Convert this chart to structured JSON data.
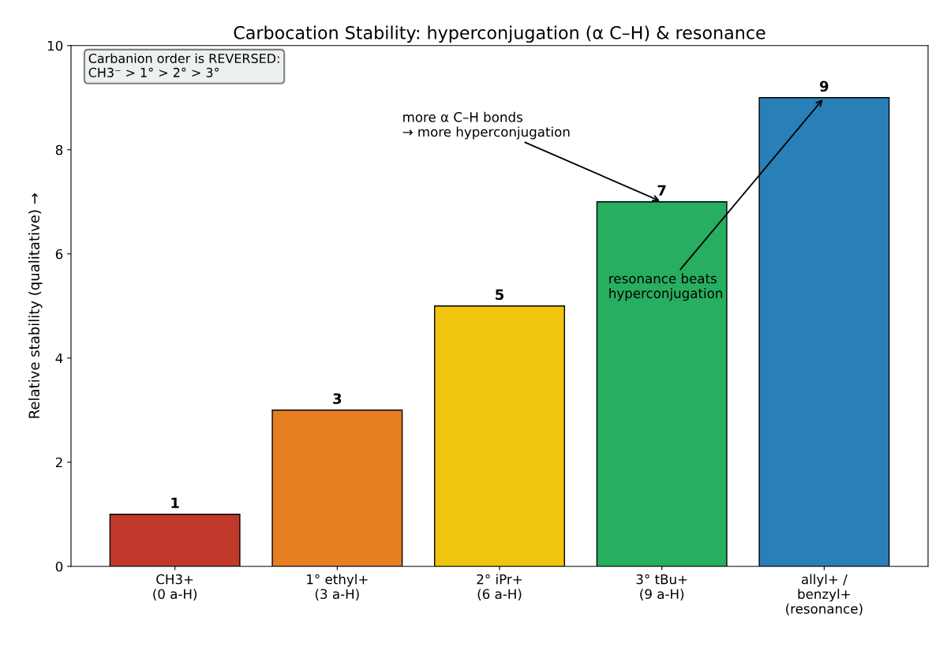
{
  "chart_data": {
    "type": "bar",
    "title": "Carbocation Stability: hyperconjugation (α C–H) & resonance",
    "ylabel": "Relative stability (qualitative) →",
    "categories": [
      "CH3+\n(0 a-H)",
      "1° ethyl+\n(3 a-H)",
      "2° iPr+\n(6 a-H)",
      "3° tBu+\n(9 a-H)",
      "allyl+ /\nbenzyl+\n(resonance)"
    ],
    "values": [
      1,
      3,
      5,
      7,
      9
    ],
    "colors": [
      "#c0392b",
      "#e67e22",
      "#f1c40f",
      "#27ae60",
      "#2980b9"
    ],
    "ylim": [
      0,
      10
    ],
    "yticks": [
      0,
      2,
      4,
      6,
      8,
      10
    ],
    "grid": false,
    "data_labels": true,
    "annotations": [
      {
        "text": "Carbanion order is REVERSED:\nCH3⁻ > 1° > 2° > 3°"
      },
      {
        "text": "more α C–H bonds\n→ more hyperconjugation",
        "x": "3° tBu+\n(9 a-H)",
        "y": 7
      },
      {
        "text": "resonance beats\nhyperconjugation",
        "x": "allyl+ /\nbenzyl+\n(resonance)",
        "y": 9
      }
    ]
  }
}
